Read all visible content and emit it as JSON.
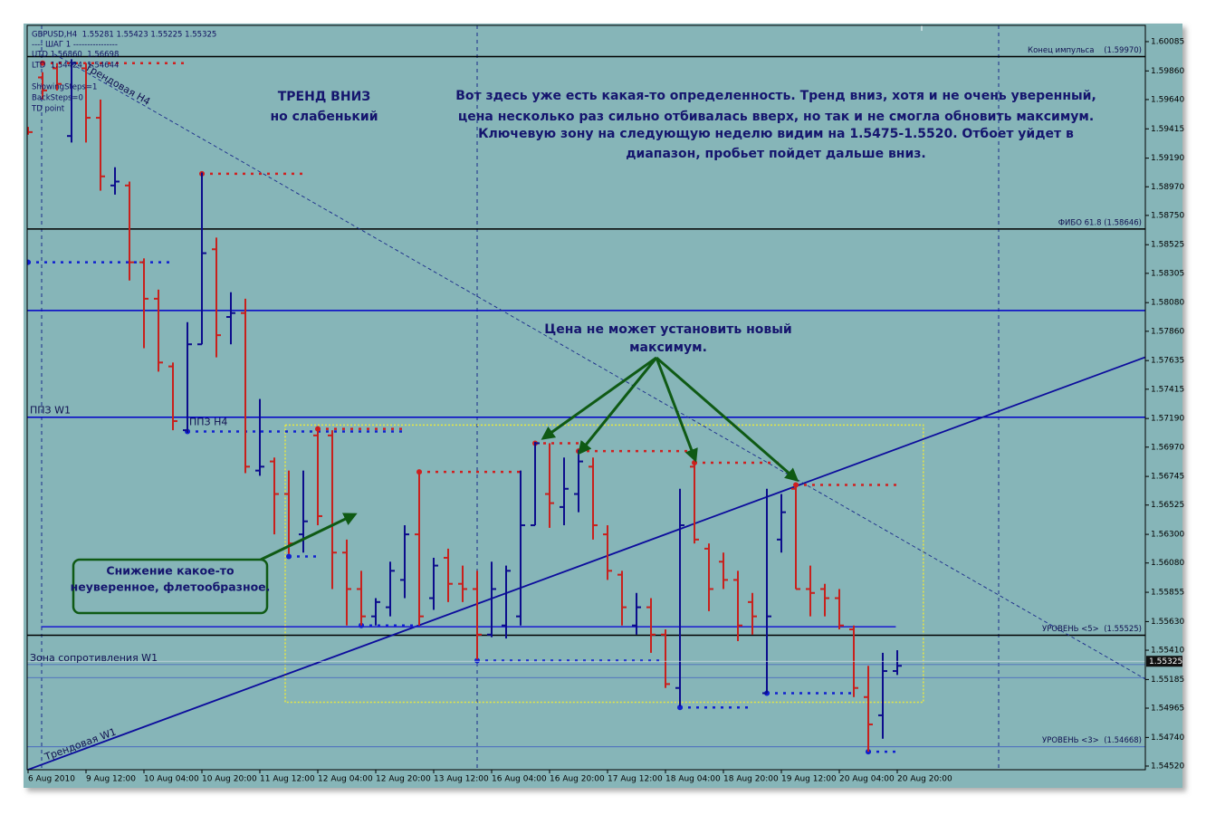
{
  "chart_data": {
    "type": "ohlc",
    "symbol_line": "GBPUSD,H4  1.55281 1.55423 1.55225 1.55325",
    "info_lines": [
      "---- ШАГ 1 ----------------",
      "UTD 1.56860  1.56698",
      "LTD  1.54424  1.54644",
      "ShowingSteps=1",
      "BackSteps=0",
      "TD point"
    ],
    "annotations": [
      "ТРЕНД ВНИЗ",
      "но слабенький",
      "Вот здесь уже есть какая-то определенность. Тренд вниз, хотя и не очень уверенный,",
      "цена несколько раз сильно отбивалась вверх, но так и не смогла обновить максимум.",
      "Ключевую зону на следующую неделю видим на 1.5475-1.5520. Отбоет уйдет в",
      "диапазон, пробьет пойдет дальше вниз.",
      "Цена не может установить новый",
      "максимум.",
      "Снижение какое-то",
      "неуверенное, флетообразное."
    ],
    "categories": [
      "6 Aug 2010",
      null,
      null,
      null,
      "9 Aug 12:00",
      null,
      null,
      null,
      "10 Aug 04:00",
      null,
      null,
      null,
      "10 Aug 20:00",
      null,
      null,
      null,
      "11 Aug 12:00",
      null,
      null,
      null,
      "12 Aug 04:00",
      null,
      null,
      null,
      "12 Aug 20:00",
      null,
      null,
      null,
      "13 Aug 12:00",
      null,
      null,
      null,
      "16 Aug 04:00",
      null,
      null,
      null,
      "16 Aug 20:00",
      null,
      null,
      null,
      "17 Aug 12:00",
      null,
      null,
      null,
      "18 Aug 04:00",
      null,
      null,
      null,
      "18 Aug 20:00",
      null,
      null,
      null,
      "19 Aug 12:00",
      null,
      null,
      null,
      "20 Aug 04:00",
      null,
      null,
      null,
      "20 Aug 20:00"
    ],
    "open": [
      1.5942,
      1.5981,
      1.5988,
      1.5936,
      1.5988,
      1.595,
      1.5898,
      1.5898,
      1.5839,
      1.5811,
      1.5759,
      1.571,
      1.5776,
      1.5849,
      1.5797,
      1.58,
      1.5679,
      1.5686,
      1.5661,
      1.563,
      1.5706,
      1.5706,
      1.5616,
      1.5588,
      1.5567,
      1.5574,
      1.5595,
      1.563,
      1.5581,
      1.5612,
      1.5592,
      1.5588,
      1.5553,
      1.556,
      1.5567,
      1.5637,
      1.5661,
      1.5651,
      1.5661,
      1.5682,
      1.563,
      1.5599,
      1.556,
      1.5574,
      1.5553,
      1.5512,
      1.5682,
      1.5619,
      1.5609,
      1.5595,
      1.5578,
      1.5508,
      1.5626,
      1.5665,
      1.5588,
      1.5588,
      1.5581,
      1.5557,
      1.5505,
      1.5491,
      1.5525
    ],
    "high": [
      1.5943,
      1.5985,
      1.5992,
      1.5995,
      1.5992,
      1.5964,
      1.5912,
      1.5901,
      1.5842,
      1.5818,
      1.5762,
      1.5793,
      1.5908,
      1.5858,
      1.5816,
      1.5811,
      1.5734,
      1.5689,
      1.5679,
      1.5679,
      1.5713,
      1.571,
      1.5626,
      1.5602,
      1.5581,
      1.5609,
      1.5637,
      1.5679,
      1.5612,
      1.5619,
      1.5606,
      1.5602,
      1.5609,
      1.5606,
      1.5679,
      1.5701,
      1.57,
      1.5689,
      1.5695,
      1.5689,
      1.5637,
      1.5602,
      1.5585,
      1.5581,
      1.5557,
      1.5665,
      1.5686,
      1.5623,
      1.5616,
      1.5602,
      1.5585,
      1.5665,
      1.5661,
      1.5668,
      1.5606,
      1.5592,
      1.5588,
      1.556,
      1.5529,
      1.5539,
      1.5541
    ],
    "low": [
      1.5937,
      1.5964,
      1.5971,
      1.5931,
      1.5931,
      1.5894,
      1.5891,
      1.5825,
      1.5773,
      1.5755,
      1.571,
      1.5708,
      1.5776,
      1.5766,
      1.5776,
      1.5677,
      1.5675,
      1.563,
      1.5615,
      1.5616,
      1.5637,
      1.5588,
      1.556,
      1.556,
      1.556,
      1.5567,
      1.5581,
      1.556,
      1.5572,
      1.5578,
      1.5578,
      1.5534,
      1.5551,
      1.555,
      1.556,
      1.5637,
      1.5635,
      1.5637,
      1.5647,
      1.5626,
      1.5595,
      1.556,
      1.5553,
      1.5539,
      1.5512,
      1.5498,
      1.5623,
      1.5571,
      1.5588,
      1.5548,
      1.5553,
      1.5508,
      1.5616,
      1.5588,
      1.5567,
      1.5567,
      1.5557,
      1.5505,
      1.5463,
      1.5473,
      1.5522
    ],
    "close": [
      1.5939,
      1.5971,
      1.5976,
      1.5992,
      1.595,
      1.5905,
      1.5901,
      1.5839,
      1.5811,
      1.5762,
      1.5717,
      1.5776,
      1.5846,
      1.5783,
      1.58,
      1.5682,
      1.5682,
      1.5661,
      1.5623,
      1.564,
      1.5644,
      1.5616,
      1.5588,
      1.5567,
      1.5578,
      1.5602,
      1.563,
      1.5567,
      1.5606,
      1.5592,
      1.5588,
      1.5553,
      1.5588,
      1.5602,
      1.5637,
      1.57,
      1.5654,
      1.5665,
      1.5686,
      1.5637,
      1.5602,
      1.5574,
      1.5574,
      1.5553,
      1.5515,
      1.5637,
      1.5626,
      1.5588,
      1.5595,
      1.556,
      1.5567,
      1.5567,
      1.5647,
      1.5588,
      1.5585,
      1.5581,
      1.556,
      1.5512,
      1.5484,
      1.5525,
      1.5529
    ],
    "up_color": "#0c0c8c",
    "down_color": "#c8201c",
    "ylim": [
      1.54492,
      1.6021
    ],
    "yticks": [
      1.60085,
      {
        "value": 1.5986,
        "label": "1.59860"
      },
      {
        "value": 1.5964,
        "label": "1.59640"
      },
      1.59415,
      {
        "value": 1.5919,
        "label": "1.59190"
      },
      {
        "value": 1.5897,
        "label": "1.58970"
      },
      {
        "value": 1.5875,
        "label": "1.58750"
      },
      1.58525,
      1.58305,
      {
        "value": 1.5808,
        "label": "1.58080"
      },
      {
        "value": 1.5786,
        "label": "1.57860"
      },
      1.57635,
      1.57415,
      {
        "value": 1.5719,
        "label": "1.57190"
      },
      {
        "value": 1.5697,
        "label": "1.56970"
      },
      1.56745,
      1.56525,
      {
        "value": 1.563,
        "label": "1.56300"
      },
      {
        "value": 1.5608,
        "label": "1.56080"
      },
      1.55855,
      {
        "value": 1.5563,
        "label": "1.55630"
      },
      {
        "value": 1.5541,
        "label": "1.55410"
      },
      1.55185,
      1.54965,
      {
        "value": 1.5474,
        "label": "1.54740"
      },
      {
        "value": 1.5452,
        "label": "1.54520"
      }
    ],
    "current_price": 1.55325,
    "levels": [
      {
        "label": "Конец импульса    (1.59970)",
        "value": 1.5997,
        "color": "#000000",
        "align": "right"
      },
      {
        "label": "ФИБО 61.8 (1.58646)",
        "value": 1.58646,
        "color": "#000000",
        "align": "right"
      },
      {
        "value": 1.5802,
        "color": "#0000c8"
      },
      {
        "label": "ППЗ W1",
        "value": 1.572,
        "color": "#0000c8",
        "align": "left"
      },
      {
        "label": "УРОВЕНЬ <5>  (1.55525)",
        "value": 1.55525,
        "color": "#000000",
        "align": "right"
      },
      {
        "label": "Зона сопротивления W1",
        "value": 1.553,
        "color": "#4060c0",
        "align": "left"
      },
      {
        "value": 1.552,
        "color": "#4060c0"
      },
      {
        "label": "УРОВЕНЬ <3>  (1.54668)",
        "value": 1.54668,
        "color": "#4060c0",
        "align": "right"
      }
    ],
    "trendlines": [
      {
        "label": "Трендовая W1",
        "x": [
          -0.06,
          77.1
        ],
        "y": [
          1.5449,
          1.5766
        ],
        "color": "#0c0c9c",
        "style": "solid"
      },
      {
        "label": "Трендовая H4",
        "x": [
          1.8,
          77.1
        ],
        "y": [
          1.5999,
          1.5519
        ],
        "color": "#1a2a8a",
        "style": "dashed"
      }
    ],
    "td_lines": [
      {
        "value": 1.5992,
        "x": [
          1,
          11
        ],
        "color": "#d02020",
        "style": "dotted"
      },
      {
        "value": 1.5907,
        "x": [
          12,
          19
        ],
        "color": "#d02020",
        "style": "dotted"
      },
      {
        "value": 1.5839,
        "x": [
          0,
          10
        ],
        "color": "#1020d0",
        "style": "dotted"
      },
      {
        "label": "ППЗ H4",
        "value": 1.5709,
        "x": [
          11,
          26
        ],
        "color": "#1020d0",
        "style": "dotted"
      },
      {
        "value": 1.5711,
        "x": [
          20,
          26
        ],
        "color": "#d02020",
        "style": "dotted"
      },
      {
        "value": 1.5678,
        "x": [
          27,
          34
        ],
        "color": "#d02020",
        "style": "dotted"
      },
      {
        "value": 1.57,
        "x": [
          35,
          38
        ],
        "color": "#d02020",
        "style": "dotted"
      },
      {
        "value": 1.5694,
        "x": [
          38,
          46
        ],
        "color": "#d02020",
        "style": "dotted"
      },
      {
        "value": 1.5685,
        "x": [
          46,
          52
        ],
        "color": "#d02020",
        "style": "dotted"
      },
      {
        "value": 1.5668,
        "x": [
          53,
          60
        ],
        "color": "#d02020",
        "style": "dotted"
      },
      {
        "value": 1.5613,
        "x": [
          18,
          20
        ],
        "color": "#1020d0",
        "style": "dotted"
      },
      {
        "value": 1.556,
        "x": [
          23,
          27
        ],
        "color": "#1020d0",
        "style": "dotted"
      },
      {
        "value": 1.5533,
        "x": [
          31,
          44
        ],
        "color": "#1020d0",
        "style": "dotted"
      },
      {
        "value": 1.5497,
        "x": [
          45,
          50
        ],
        "color": "#1020d0",
        "style": "dotted"
      },
      {
        "value": 1.5508,
        "x": [
          51,
          57
        ],
        "color": "#1020d0",
        "style": "dotted"
      },
      {
        "value": 1.5463,
        "x": [
          58,
          60
        ],
        "color": "#1020d0",
        "style": "dotted"
      },
      {
        "value": 1.5559,
        "x": [
          0.9,
          59.9
        ],
        "color": "#1a1ad0",
        "style": "solid"
      }
    ],
    "zone": {
      "x": [
        17.75,
        61.8
      ],
      "y": [
        1.5501,
        1.5714
      ],
      "color": "#e8e840"
    }
  }
}
